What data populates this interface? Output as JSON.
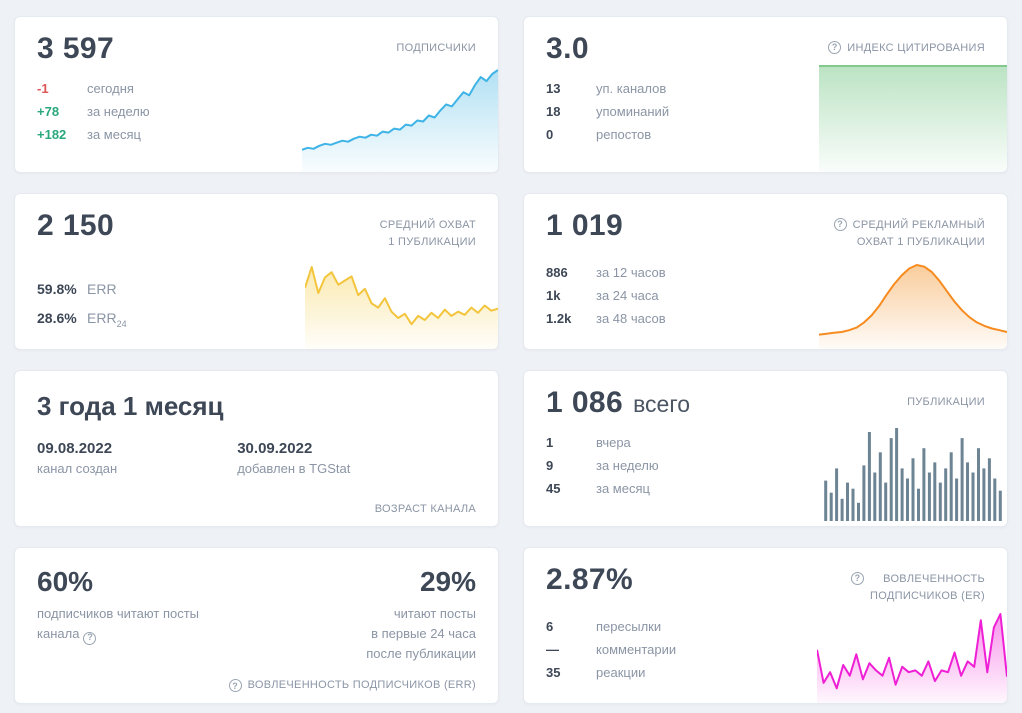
{
  "icons": {
    "info": "?"
  },
  "colors": {
    "background": "#eef1f5",
    "card_border": "#e5e9f0",
    "text_dark": "#3d4756",
    "text_gray": "#8b95a5",
    "negative": "#e05555",
    "positive": "#2aa87c"
  },
  "cards": {
    "subscribers": {
      "title": "ПОДПИСЧИКИ",
      "value": "3 597",
      "stats": [
        {
          "value": "-1",
          "label": "сегодня"
        },
        {
          "value": "+78",
          "label": "за неделю"
        },
        {
          "value": "+182",
          "label": "за месяц"
        }
      ]
    },
    "citation": {
      "title": "ИНДЕКС ЦИТИРОВАНИЯ",
      "value": "3.0",
      "stats": [
        {
          "value": "13",
          "label": "уп. каналов"
        },
        {
          "value": "18",
          "label": "упоминаний"
        },
        {
          "value": "0",
          "label": "репостов"
        }
      ]
    },
    "avg_reach": {
      "title": "СРЕДНИЙ ОХВАТ\n1 ПУБЛИКАЦИИ",
      "value": "2 150",
      "stats": [
        {
          "value": "59.8%",
          "label": "ERR",
          "sub": ""
        },
        {
          "value": "28.6%",
          "label": "ERR",
          "sub": "24"
        }
      ]
    },
    "ad_reach": {
      "title": "СРЕДНИЙ РЕКЛАМНЫЙ\nОХВАТ 1 ПУБЛИКАЦИИ",
      "value": "1 019",
      "stats": [
        {
          "value": "886",
          "label": "за 12 часов"
        },
        {
          "value": "1k",
          "label": "за 24 часа"
        },
        {
          "value": "1.2k",
          "label": "за 48 часов"
        }
      ]
    },
    "age": {
      "value": "3 года 1 месяц",
      "footer": "ВОЗРАСТ КАНАЛА",
      "items": [
        {
          "value": "09.08.2022",
          "label": "канал создан"
        },
        {
          "value": "30.09.2022",
          "label": "добавлен в TGStat"
        }
      ]
    },
    "publications": {
      "title": "ПУБЛИКАЦИИ",
      "value": "1 086",
      "value_suffix": "всего",
      "stats": [
        {
          "value": "1",
          "label": "вчера"
        },
        {
          "value": "9",
          "label": "за неделю"
        },
        {
          "value": "45",
          "label": "за месяц"
        }
      ]
    },
    "err": {
      "left_value": "60%",
      "left_label": "подписчиков читают посты\nканала",
      "right_value": "29%",
      "right_label": "читают посты\nв первые 24 часа\nпосле публикации",
      "footer": "ВОВЛЕЧЕННОСТЬ ПОДПИСЧИКОВ (ERR)"
    },
    "er": {
      "title": "ВОВЛЕЧЕННОСТЬ\nПОДПИСЧИКОВ (ER)",
      "value": "2.87%",
      "stats": [
        {
          "value": "6",
          "label": "пересылки"
        },
        {
          "value": "—",
          "label": "комментарии"
        },
        {
          "value": "35",
          "label": "реакции"
        }
      ]
    }
  },
  "chart_data": [
    {
      "name": "subscribers_spark",
      "type": "area",
      "title": "Подписчики",
      "color": "#3eb3e6",
      "fill": "#9fd9f0",
      "values": [
        18,
        20,
        19,
        22,
        24,
        23,
        25,
        27,
        26,
        29,
        31,
        30,
        33,
        32,
        36,
        35,
        39,
        38,
        43,
        42,
        47,
        46,
        52,
        50,
        57,
        63,
        61,
        68,
        75,
        72,
        82,
        90,
        86,
        93,
        97
      ]
    },
    {
      "name": "citation_spark",
      "type": "area",
      "title": "Индекс цитирования",
      "color": "#82c98e",
      "fill": "#aadcb4",
      "values": [
        97,
        97,
        97
      ]
    },
    {
      "name": "avg_reach_spark",
      "type": "area",
      "title": "Средний охват 1 публикации",
      "color": "#f3c53d",
      "fill": "#f9e49c",
      "values": [
        55,
        75,
        50,
        65,
        70,
        58,
        62,
        66,
        48,
        54,
        40,
        36,
        45,
        32,
        26,
        30,
        20,
        28,
        24,
        31,
        26,
        34,
        28,
        32,
        29,
        36,
        31,
        38,
        33,
        35
      ]
    },
    {
      "name": "ad_reach_spark",
      "type": "area",
      "title": "Средний рекламный охват 1 публикации",
      "color": "#f68b1f",
      "fill": "#f8c083",
      "values": [
        12,
        13,
        14,
        15,
        17,
        20,
        26,
        34,
        45,
        58,
        70,
        80,
        88,
        92,
        90,
        84,
        74,
        62,
        50,
        40,
        32,
        26,
        22,
        19,
        17,
        15
      ]
    },
    {
      "name": "publications_bars",
      "type": "bar",
      "title": "Публикации",
      "color": "#6d8494",
      "values": [
        40,
        28,
        52,
        22,
        38,
        32,
        18,
        55,
        88,
        48,
        68,
        38,
        82,
        92,
        52,
        42,
        62,
        32,
        72,
        48,
        58,
        38,
        52,
        68,
        42,
        82,
        58,
        48,
        72,
        52,
        62,
        42,
        30
      ]
    },
    {
      "name": "er_spark",
      "type": "area",
      "title": "Вовлеченность подписчиков (ER)",
      "color": "#ee1fd5",
      "fill": "#f679e6",
      "values": [
        55,
        18,
        30,
        12,
        38,
        26,
        50,
        22,
        40,
        32,
        26,
        46,
        16,
        36,
        30,
        32,
        26,
        42,
        20,
        32,
        30,
        52,
        26,
        42,
        36,
        88,
        30,
        80,
        95,
        25
      ]
    }
  ]
}
